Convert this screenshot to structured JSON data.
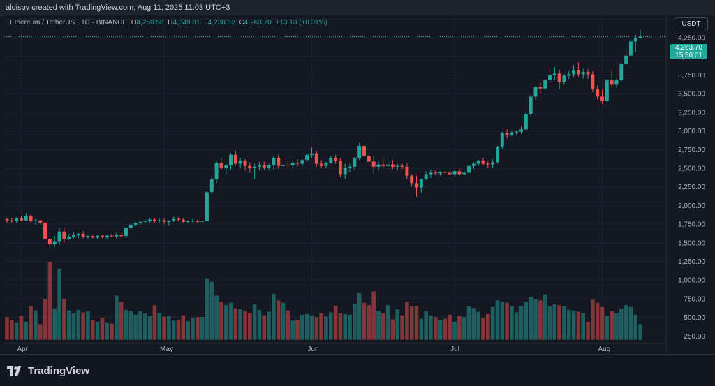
{
  "header": {
    "credit": "aloisov created with TradingView.com, Aug 11, 2025 11:03 UTC+3"
  },
  "legend": {
    "symbol": "Ethereum / TetherUS · 1D · BINANCE",
    "o_label": "O",
    "o_value": "4,250.58",
    "h_label": "H",
    "h_value": "4,349.81",
    "l_label": "L",
    "l_value": "4,238.52",
    "c_label": "C",
    "c_value": "4,263.70",
    "change": "+13.13 (+0.31%)"
  },
  "currency_button": "USDT",
  "price_tag": {
    "price": "4,263.70",
    "countdown": "15:56:01"
  },
  "footer": {
    "brand": "TradingView",
    "logo": "tradingview-logo-icon"
  },
  "colors": {
    "up": "#26a69a",
    "down": "#ef5350",
    "background": "#131722"
  },
  "chart_data": {
    "type": "candlestick",
    "title": "",
    "xlabel": "",
    "ylabel": "",
    "y_ticks": [
      "250.00",
      "500.00",
      "750.00",
      "1,000.00",
      "1,250.00",
      "1,500.00",
      "1,750.00",
      "2,000.00",
      "2,250.00",
      "2,500.00",
      "2,750.00",
      "3,000.00",
      "3,250.00",
      "3,500.00",
      "3,750.00",
      "4,000.00",
      "4,250.00",
      "4,500.00"
    ],
    "x_ticks": [
      {
        "label": "Apr",
        "index": 3
      },
      {
        "label": "May",
        "index": 33
      },
      {
        "label": "Jun",
        "index": 64
      },
      {
        "label": "Jul",
        "index": 94
      },
      {
        "label": "Aug",
        "index": 125
      }
    ],
    "ylim": [
      150,
      4550
    ],
    "last_price": 4263.7,
    "grid": true,
    "candles_ohlcv": [
      [
        1815,
        1840,
        1770,
        1800,
        380
      ],
      [
        1800,
        1830,
        1760,
        1790,
        330
      ],
      [
        1790,
        1840,
        1770,
        1825,
        280
      ],
      [
        1825,
        1860,
        1790,
        1800,
        400
      ],
      [
        1800,
        1900,
        1790,
        1860,
        300
      ],
      [
        1860,
        1880,
        1760,
        1790,
        560
      ],
      [
        1790,
        1820,
        1740,
        1800,
        490
      ],
      [
        1800,
        1810,
        1740,
        1770,
        260
      ],
      [
        1770,
        1790,
        1500,
        1550,
        680
      ],
      [
        1550,
        1640,
        1420,
        1480,
        1300
      ],
      [
        1480,
        1590,
        1440,
        1520,
        520
      ],
      [
        1520,
        1700,
        1470,
        1650,
        1190
      ],
      [
        1650,
        1700,
        1500,
        1550,
        680
      ],
      [
        1550,
        1620,
        1540,
        1580,
        490
      ],
      [
        1580,
        1640,
        1560,
        1600,
        440
      ],
      [
        1600,
        1630,
        1560,
        1620,
        500
      ],
      [
        1620,
        1660,
        1560,
        1580,
        460
      ],
      [
        1580,
        1610,
        1550,
        1590,
        480
      ],
      [
        1590,
        1610,
        1560,
        1570,
        330
      ],
      [
        1570,
        1600,
        1550,
        1595,
        300
      ],
      [
        1595,
        1610,
        1560,
        1575,
        360
      ],
      [
        1575,
        1610,
        1550,
        1595,
        280
      ],
      [
        1595,
        1620,
        1575,
        1585,
        270
      ],
      [
        1585,
        1630,
        1560,
        1610,
        740
      ],
      [
        1610,
        1640,
        1580,
        1590,
        640
      ],
      [
        1590,
        1720,
        1570,
        1700,
        500
      ],
      [
        1700,
        1760,
        1680,
        1740,
        480
      ],
      [
        1740,
        1780,
        1720,
        1760,
        420
      ],
      [
        1760,
        1790,
        1740,
        1780,
        480
      ],
      [
        1780,
        1810,
        1760,
        1790,
        440
      ],
      [
        1790,
        1830,
        1760,
        1810,
        400
      ],
      [
        1810,
        1830,
        1760,
        1790,
        580
      ],
      [
        1790,
        1830,
        1770,
        1800,
        450
      ],
      [
        1800,
        1830,
        1750,
        1780,
        390
      ],
      [
        1780,
        1800,
        1730,
        1800,
        400
      ],
      [
        1800,
        1850,
        1780,
        1820,
        320
      ],
      [
        1820,
        1840,
        1790,
        1810,
        330
      ],
      [
        1810,
        1830,
        1770,
        1780,
        410
      ],
      [
        1780,
        1800,
        1760,
        1790,
        310
      ],
      [
        1790,
        1820,
        1770,
        1795,
        360
      ],
      [
        1795,
        1810,
        1760,
        1780,
        380
      ],
      [
        1780,
        1800,
        1760,
        1790,
        380
      ],
      [
        1790,
        2200,
        1780,
        2180,
        1030
      ],
      [
        2180,
        2400,
        2150,
        2350,
        970
      ],
      [
        2350,
        2600,
        2300,
        2570,
        740
      ],
      [
        2570,
        2640,
        2480,
        2500,
        640
      ],
      [
        2500,
        2580,
        2420,
        2540,
        580
      ],
      [
        2540,
        2700,
        2480,
        2680,
        620
      ],
      [
        2680,
        2740,
        2540,
        2560,
        530
      ],
      [
        2560,
        2640,
        2500,
        2600,
        510
      ],
      [
        2600,
        2620,
        2470,
        2530,
        480
      ],
      [
        2530,
        2580,
        2440,
        2500,
        450
      ],
      [
        2500,
        2560,
        2360,
        2520,
        590
      ],
      [
        2520,
        2590,
        2470,
        2540,
        500
      ],
      [
        2540,
        2590,
        2480,
        2510,
        410
      ],
      [
        2510,
        2560,
        2470,
        2540,
        470
      ],
      [
        2540,
        2660,
        2480,
        2640,
        770
      ],
      [
        2640,
        2680,
        2500,
        2530,
        660
      ],
      [
        2530,
        2580,
        2480,
        2545,
        620
      ],
      [
        2545,
        2590,
        2510,
        2540,
        490
      ],
      [
        2540,
        2600,
        2500,
        2570,
        320
      ],
      [
        2570,
        2620,
        2520,
        2560,
        330
      ],
      [
        2560,
        2620,
        2520,
        2610,
        420
      ],
      [
        2610,
        2700,
        2580,
        2680,
        430
      ],
      [
        2680,
        2780,
        2640,
        2700,
        410
      ],
      [
        2700,
        2730,
        2520,
        2560,
        380
      ],
      [
        2560,
        2610,
        2500,
        2530,
        440
      ],
      [
        2530,
        2590,
        2500,
        2575,
        390
      ],
      [
        2575,
        2660,
        2560,
        2640,
        460
      ],
      [
        2640,
        2680,
        2560,
        2600,
        570
      ],
      [
        2600,
        2630,
        2380,
        2420,
        440
      ],
      [
        2420,
        2560,
        2360,
        2500,
        430
      ],
      [
        2500,
        2560,
        2450,
        2520,
        420
      ],
      [
        2520,
        2650,
        2480,
        2630,
        600
      ],
      [
        2630,
        2840,
        2610,
        2800,
        780
      ],
      [
        2800,
        2870,
        2620,
        2660,
        620
      ],
      [
        2660,
        2700,
        2550,
        2590,
        580
      ],
      [
        2590,
        2660,
        2430,
        2520,
        810
      ],
      [
        2520,
        2600,
        2470,
        2550,
        480
      ],
      [
        2550,
        2620,
        2500,
        2530,
        440
      ],
      [
        2530,
        2600,
        2480,
        2550,
        580
      ],
      [
        2550,
        2610,
        2490,
        2520,
        340
      ],
      [
        2520,
        2560,
        2470,
        2530,
        510
      ],
      [
        2530,
        2560,
        2490,
        2520,
        410
      ],
      [
        2520,
        2560,
        2360,
        2400,
        640
      ],
      [
        2400,
        2420,
        2260,
        2300,
        560
      ],
      [
        2300,
        2400,
        2120,
        2240,
        570
      ],
      [
        2240,
        2360,
        2170,
        2360,
        350
      ],
      [
        2360,
        2460,
        2340,
        2420,
        480
      ],
      [
        2420,
        2480,
        2370,
        2440,
        410
      ],
      [
        2440,
        2470,
        2410,
        2430,
        380
      ],
      [
        2430,
        2460,
        2400,
        2450,
        330
      ],
      [
        2450,
        2490,
        2410,
        2440,
        350
      ],
      [
        2440,
        2460,
        2400,
        2420,
        420
      ],
      [
        2420,
        2480,
        2390,
        2460,
        300
      ],
      [
        2460,
        2500,
        2400,
        2420,
        400
      ],
      [
        2420,
        2460,
        2380,
        2440,
        380
      ],
      [
        2440,
        2560,
        2410,
        2530,
        560
      ],
      [
        2530,
        2580,
        2490,
        2560,
        530
      ],
      [
        2560,
        2620,
        2530,
        2600,
        470
      ],
      [
        2600,
        2640,
        2540,
        2560,
        360
      ],
      [
        2560,
        2600,
        2500,
        2550,
        430
      ],
      [
        2550,
        2620,
        2500,
        2580,
        550
      ],
      [
        2580,
        2800,
        2560,
        2780,
        660
      ],
      [
        2780,
        2990,
        2760,
        2970,
        640
      ],
      [
        2970,
        3020,
        2900,
        2950,
        620
      ],
      [
        2950,
        3000,
        2930,
        2980,
        560
      ],
      [
        2980,
        3010,
        2940,
        2990,
        460
      ],
      [
        2990,
        3060,
        2960,
        3020,
        570
      ],
      [
        3020,
        3280,
        3000,
        3230,
        640
      ],
      [
        3230,
        3490,
        3200,
        3460,
        720
      ],
      [
        3460,
        3600,
        3420,
        3590,
        680
      ],
      [
        3590,
        3650,
        3500,
        3570,
        660
      ],
      [
        3570,
        3700,
        3540,
        3680,
        760
      ],
      [
        3680,
        3850,
        3640,
        3750,
        560
      ],
      [
        3750,
        3860,
        3680,
        3770,
        590
      ],
      [
        3770,
        3820,
        3560,
        3660,
        580
      ],
      [
        3660,
        3760,
        3620,
        3740,
        560
      ],
      [
        3740,
        3800,
        3700,
        3760,
        500
      ],
      [
        3760,
        3880,
        3720,
        3820,
        490
      ],
      [
        3820,
        3920,
        3720,
        3760,
        470
      ],
      [
        3760,
        3830,
        3700,
        3790,
        440
      ],
      [
        3790,
        3830,
        3700,
        3760,
        300
      ],
      [
        3760,
        3800,
        3520,
        3560,
        670
      ],
      [
        3560,
        3610,
        3420,
        3460,
        620
      ],
      [
        3460,
        3550,
        3360,
        3400,
        550
      ],
      [
        3400,
        3700,
        3380,
        3680,
        400
      ],
      [
        3680,
        3800,
        3580,
        3620,
        480
      ],
      [
        3620,
        3700,
        3580,
        3680,
        440
      ],
      [
        3680,
        3910,
        3650,
        3900,
        520
      ],
      [
        3900,
        4100,
        3860,
        4010,
        580
      ],
      [
        4010,
        4230,
        3980,
        4200,
        550
      ],
      [
        4200,
        4290,
        4060,
        4250,
        420
      ],
      [
        4250,
        4349.81,
        4238.52,
        4263.7,
        260
      ]
    ]
  }
}
